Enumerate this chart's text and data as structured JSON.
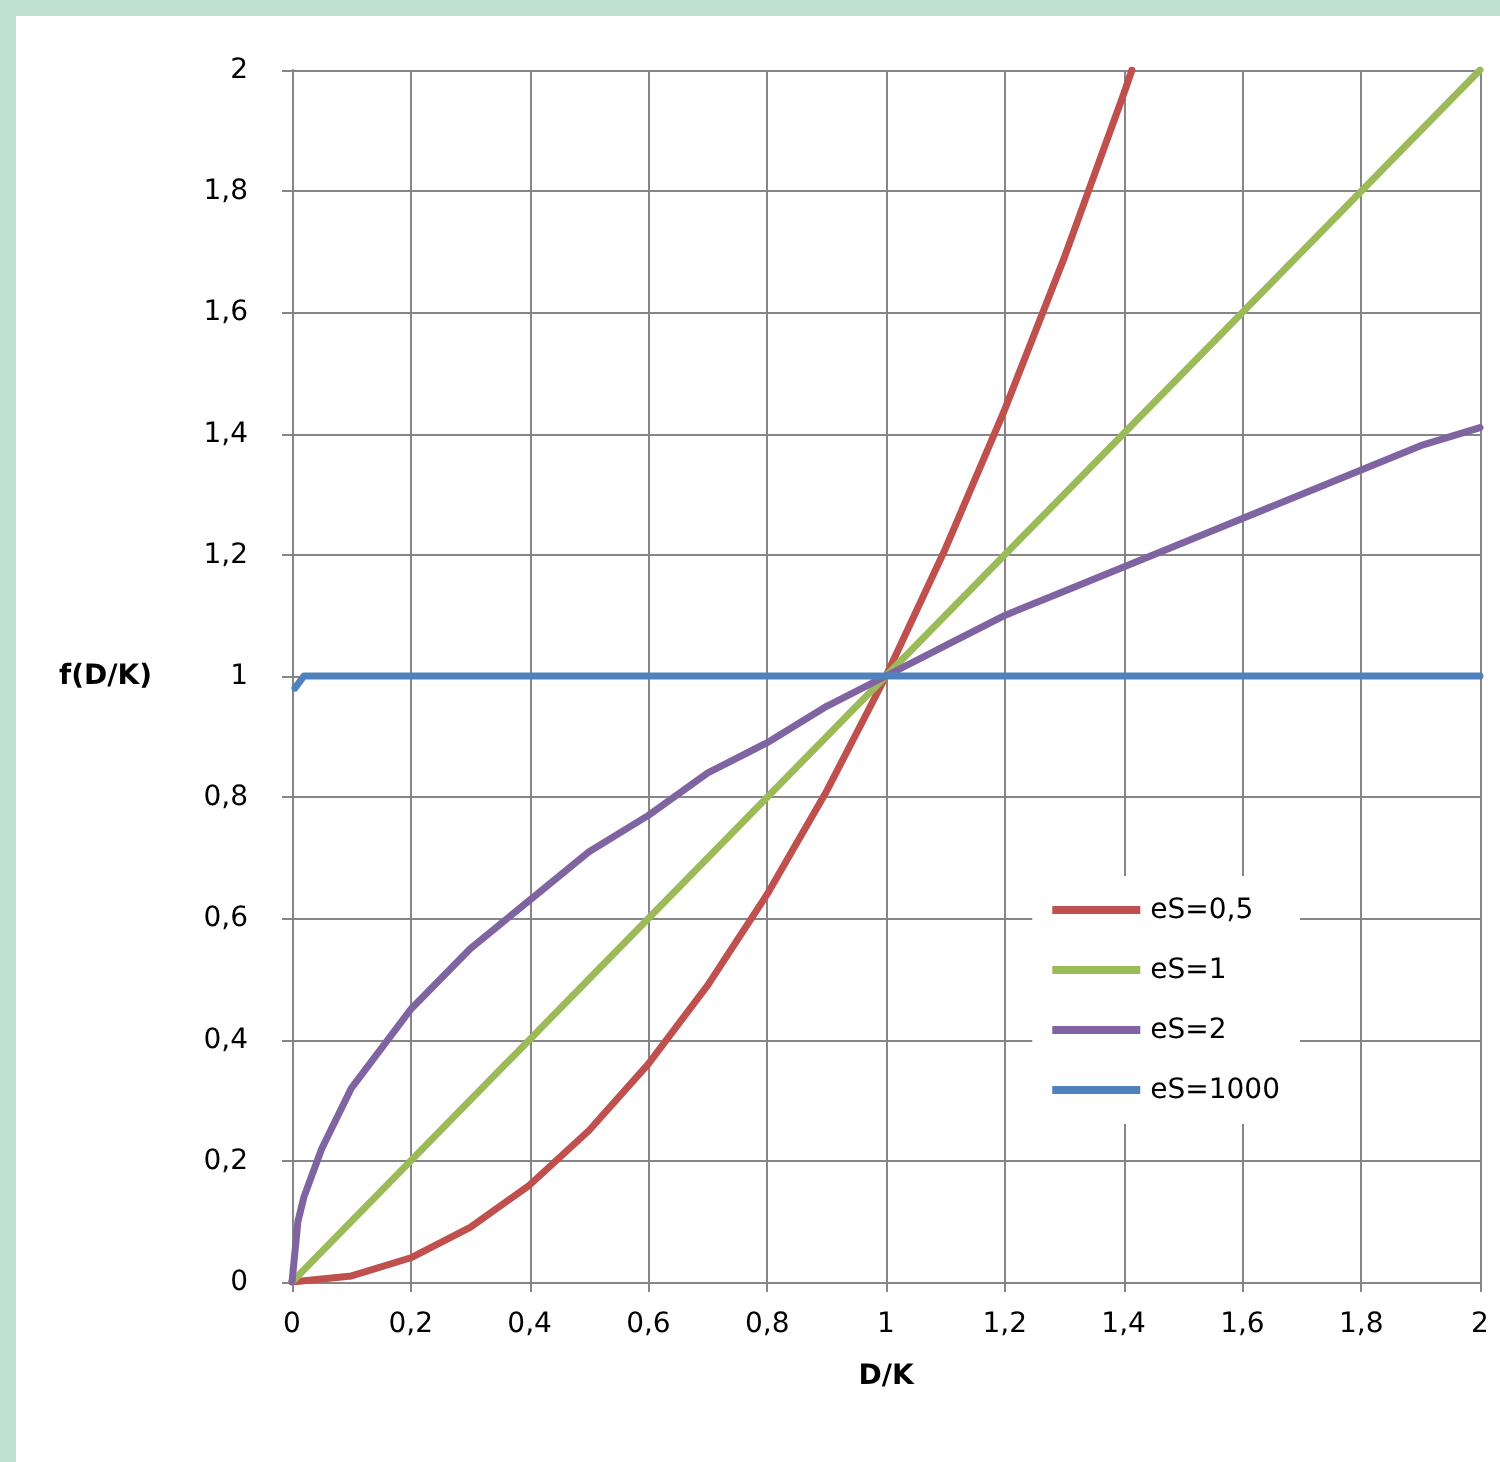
{
  "chart_data": {
    "type": "line",
    "xlabel": "D/K",
    "ylabel": "f(D/K)",
    "xlim": [
      0,
      2
    ],
    "ylim": [
      0,
      2
    ],
    "xticks": [
      0,
      {
        "value": 0.2,
        "label": "0,2"
      },
      {
        "value": 0.4,
        "label": "0,4"
      },
      {
        "value": 0.6,
        "label": "0,6"
      },
      {
        "value": 0.8,
        "label": "0,8"
      },
      1,
      {
        "value": 1.2,
        "label": "1,2"
      },
      {
        "value": 1.4,
        "label": "1,4"
      },
      {
        "value": 1.6,
        "label": "1,6"
      },
      {
        "value": 1.8,
        "label": "1,8"
      },
      2
    ],
    "yticks": [
      0,
      {
        "value": 0.2,
        "label": "0,2"
      },
      {
        "value": 0.4,
        "label": "0,4"
      },
      {
        "value": 0.6,
        "label": "0,6"
      },
      {
        "value": 0.8,
        "label": "0,8"
      },
      1,
      {
        "value": 1.2,
        "label": "1,2"
      },
      {
        "value": 1.4,
        "label": "1,4"
      },
      {
        "value": 1.6,
        "label": "1,6"
      },
      {
        "value": 1.8,
        "label": "1,8"
      },
      2
    ],
    "grid": true,
    "legend": "right",
    "marker": "none",
    "line_style": "solid",
    "series": [
      {
        "name": "eS=0,5",
        "color": "#c0504d",
        "x": [
          0,
          0.1,
          0.2,
          0.3,
          0.4,
          0.5,
          0.6,
          0.7,
          0.8,
          0.9,
          1,
          1.1,
          1.2,
          1.3,
          1.4,
          1.414
        ],
        "values": [
          0,
          0.01,
          0.04,
          0.09,
          0.16,
          0.25,
          0.36,
          0.49,
          0.64,
          0.81,
          1,
          1.21,
          1.44,
          1.69,
          1.96,
          2
        ]
      },
      {
        "name": "eS=1",
        "color": "#9bbb59",
        "x": [
          0,
          0.5,
          1,
          1.5,
          2
        ],
        "values": [
          0,
          0.5,
          1,
          1.5,
          2
        ]
      },
      {
        "name": "eS=2",
        "color": "#8064a2",
        "x": [
          0,
          0.01,
          0.02,
          0.05,
          0.1,
          0.2,
          0.3,
          0.4,
          0.5,
          0.6,
          0.7,
          0.8,
          0.9,
          1,
          1.1,
          1.2,
          1.3,
          1.4,
          1.5,
          1.6,
          1.7,
          1.8,
          1.9,
          2
        ],
        "values": [
          0,
          0.1,
          0.14,
          0.22,
          0.32,
          0.45,
          0.55,
          0.63,
          0.71,
          0.77,
          0.84,
          0.89,
          0.95,
          1,
          1.05,
          1.1,
          1.14,
          1.18,
          1.22,
          1.26,
          1.3,
          1.34,
          1.38,
          1.41
        ]
      },
      {
        "name": "eS=1000",
        "color": "#4f81bd",
        "x": [
          0.005,
          0.02,
          2
        ],
        "values": [
          0.98,
          1,
          1
        ]
      }
    ]
  }
}
